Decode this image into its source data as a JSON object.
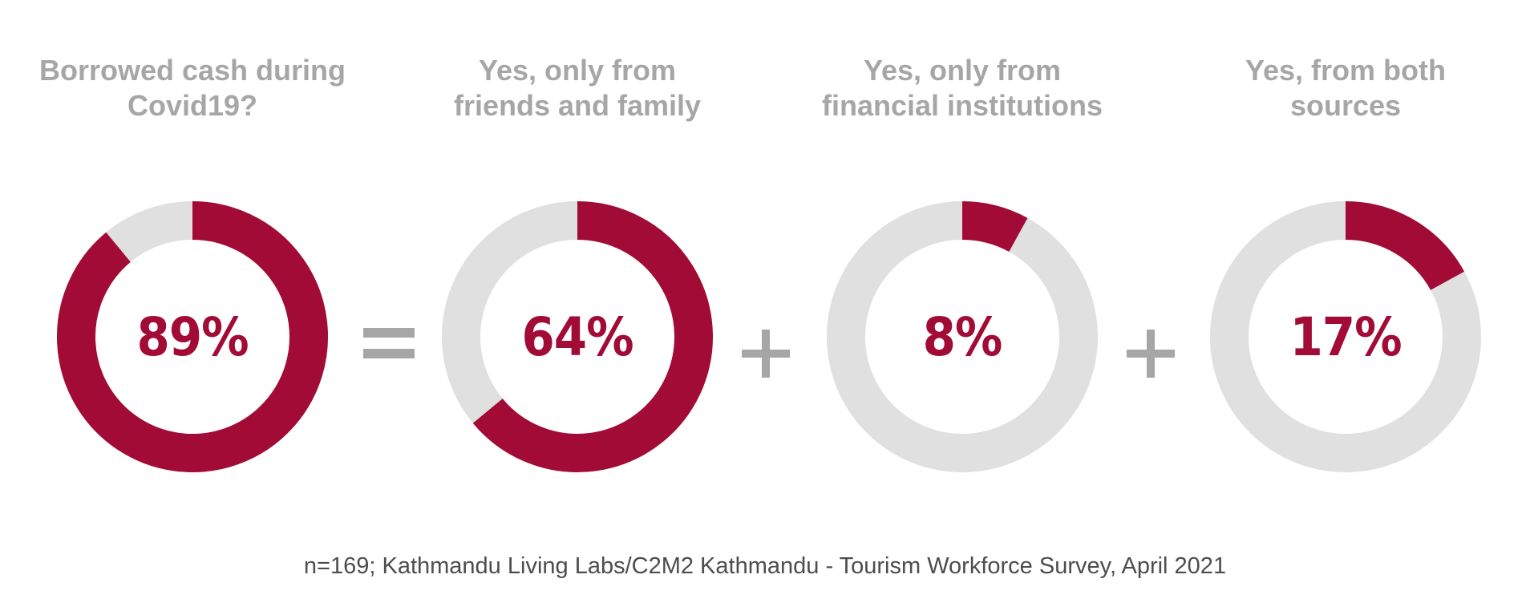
{
  "colors": {
    "highlight": "#a20b35",
    "track": "#e0e0e0",
    "label": "#a6a6a6",
    "footnote": "#4d4d4d"
  },
  "chart_data": [
    {
      "type": "pie",
      "title": "Borrowed cash during\nCovid19?",
      "value": 89,
      "label": "89%"
    },
    {
      "type": "pie",
      "title": "Yes, only from\nfriends and family",
      "value": 64,
      "label": "64%"
    },
    {
      "type": "pie",
      "title": "Yes, only from\nfinancial institutions",
      "value": 8,
      "label": "8%"
    },
    {
      "type": "pie",
      "title": "Yes, from both\nsources",
      "value": 17,
      "label": "17%"
    }
  ],
  "operators": [
    "equals",
    "plus",
    "plus"
  ],
  "footnote": "n=169; Kathmandu Living Labs/C2M2 Kathmandu - Tourism Workforce Survey, April 2021"
}
